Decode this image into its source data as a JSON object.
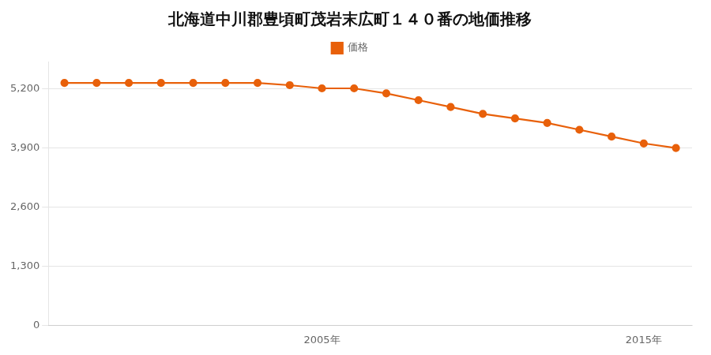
{
  "chart_data": {
    "type": "line",
    "title": "北海道中川郡豊頃町茂岩末広町１４０番の地価推移",
    "x": [
      1997,
      1998,
      1999,
      2000,
      2001,
      2002,
      2003,
      2004,
      2005,
      2006,
      2007,
      2008,
      2009,
      2010,
      2011,
      2012,
      2013,
      2014,
      2015,
      2016
    ],
    "series": [
      {
        "name": "価格",
        "color": "#e8600a",
        "values": [
          5330,
          5330,
          5330,
          5330,
          5330,
          5330,
          5330,
          5280,
          5210,
          5210,
          5100,
          4950,
          4800,
          4650,
          4550,
          4450,
          4300,
          4150,
          4000,
          3900
        ]
      }
    ],
    "xlim": [
      1996.5,
      2016.5
    ],
    "xticks": [
      {
        "value": 2005,
        "label": "2005年"
      },
      {
        "value": 2015,
        "label": "2015年"
      }
    ],
    "ylim": [
      0,
      5800
    ],
    "yticks": [
      0,
      {
        "value": 1300,
        "label": "1,300"
      },
      {
        "value": 2600,
        "label": "2,600"
      },
      {
        "value": 3900,
        "label": "3,900"
      },
      {
        "value": 5200,
        "label": "5,200"
      }
    ],
    "grid": "y",
    "legend": "top",
    "marker": "circle",
    "line_style": "solid"
  }
}
